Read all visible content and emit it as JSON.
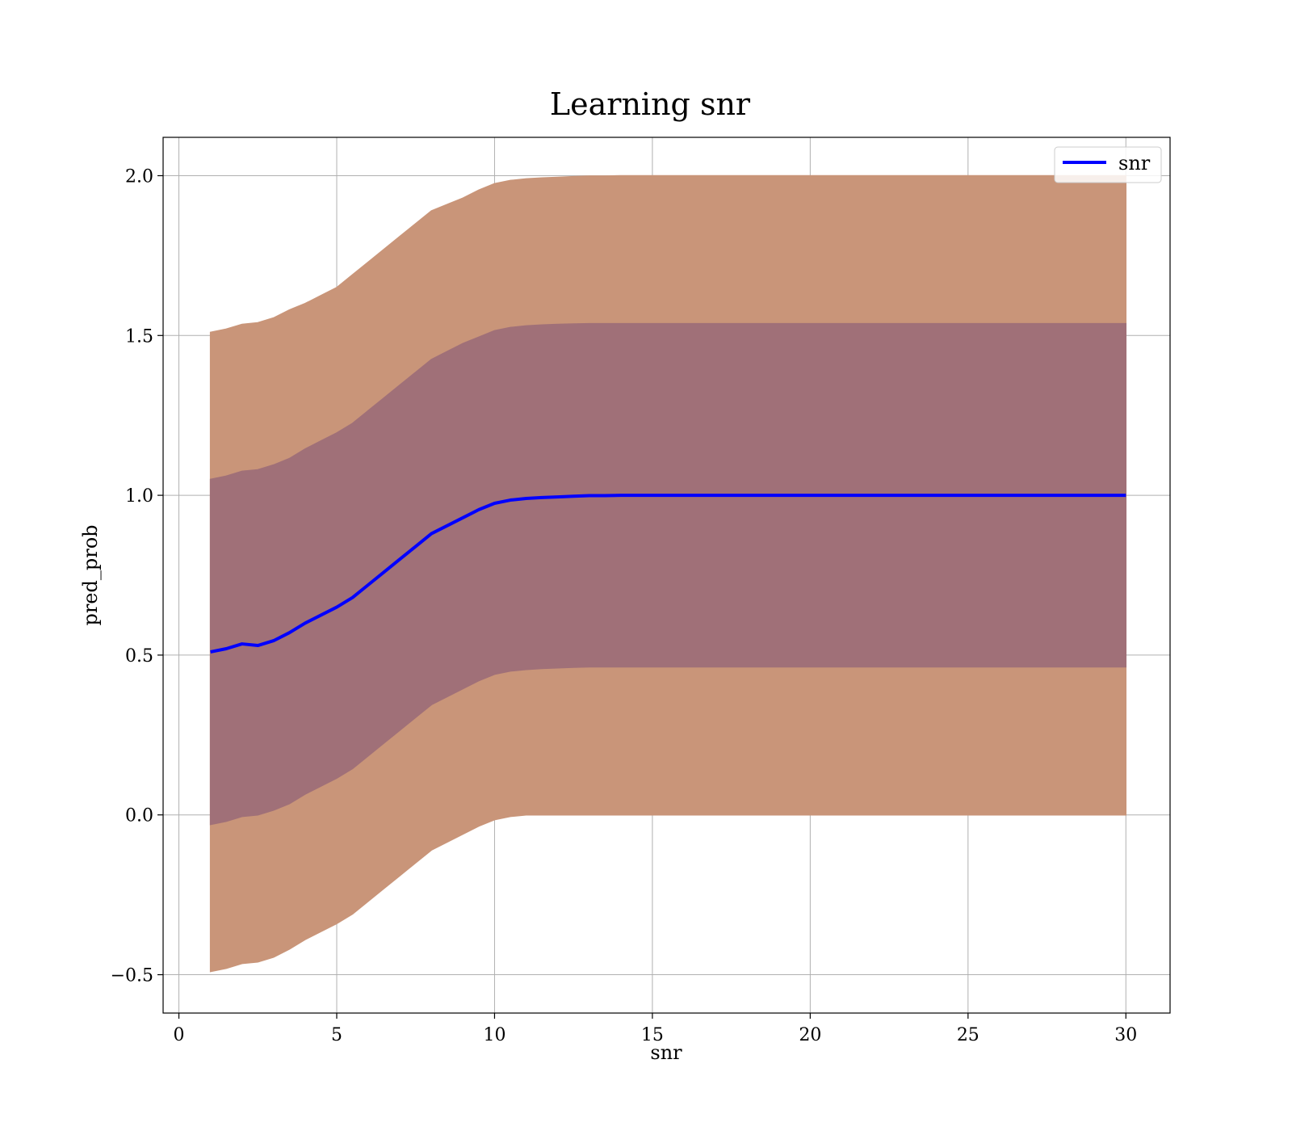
{
  "chart_data": {
    "type": "line",
    "title": "Learning snr",
    "xlabel": "snr",
    "ylabel": "pred_prob",
    "xlim": [
      -0.5,
      31.4
    ],
    "ylim": [
      -0.62,
      2.12
    ],
    "xticks": [
      0,
      5,
      10,
      15,
      20,
      25,
      30
    ],
    "xtick_labels": [
      "0",
      "5",
      "10",
      "15",
      "20",
      "25",
      "30"
    ],
    "yticks": [
      -0.5,
      0.0,
      0.5,
      1.0,
      1.5,
      2.0
    ],
    "ytick_labels": [
      "−0.5",
      "0.0",
      "0.5",
      "1.0",
      "1.5",
      "2.0"
    ],
    "grid": true,
    "legend": {
      "position": "top-right",
      "entries": [
        "snr"
      ]
    },
    "x": [
      1,
      1.5,
      2,
      2.5,
      3,
      3.5,
      4,
      4.5,
      5,
      5.5,
      6,
      6.5,
      7,
      7.5,
      8,
      8.5,
      9,
      9.5,
      10,
      10.5,
      11,
      11.5,
      12,
      12.5,
      13,
      13.5,
      14,
      15,
      16,
      18,
      20,
      22,
      25,
      28,
      30
    ],
    "series": [
      {
        "name": "snr",
        "color": "#0000ff",
        "values": [
          0.51,
          0.52,
          0.535,
          0.53,
          0.545,
          0.57,
          0.6,
          0.625,
          0.65,
          0.68,
          0.72,
          0.76,
          0.8,
          0.84,
          0.88,
          0.905,
          0.93,
          0.955,
          0.975,
          0.985,
          0.99,
          0.993,
          0.995,
          0.997,
          0.999,
          0.999,
          1.0,
          1.0,
          1.0,
          1.0,
          1.0,
          1.0,
          1.0,
          1.0,
          1.0
        ]
      }
    ],
    "bands": [
      {
        "color": "#c99579",
        "lower": [
          -0.49,
          -0.48,
          -0.465,
          -0.46,
          -0.445,
          -0.42,
          -0.39,
          -0.365,
          -0.34,
          -0.31,
          -0.27,
          -0.23,
          -0.19,
          -0.15,
          -0.11,
          -0.085,
          -0.06,
          -0.035,
          -0.015,
          -0.005,
          0.0,
          0.0,
          0.0,
          0.0,
          0.0,
          0.0,
          0.0,
          0.0,
          0.0,
          0.0,
          0.0,
          0.0,
          0.0,
          0.0,
          0.0
        ],
        "upper": [
          1.51,
          1.52,
          1.535,
          1.54,
          1.555,
          1.58,
          1.6,
          1.625,
          1.65,
          1.69,
          1.73,
          1.77,
          1.81,
          1.85,
          1.89,
          1.91,
          1.93,
          1.955,
          1.975,
          1.985,
          1.99,
          1.993,
          1.995,
          1.997,
          1.999,
          1.999,
          2.0,
          2.0,
          2.0,
          2.0,
          2.0,
          2.0,
          2.0,
          2.0,
          2.0
        ]
      },
      {
        "color": "#a07078",
        "lower": [
          -0.03,
          -0.02,
          -0.005,
          -0.0,
          0.015,
          0.035,
          0.065,
          0.09,
          0.115,
          0.145,
          0.185,
          0.225,
          0.265,
          0.305,
          0.345,
          0.37,
          0.395,
          0.42,
          0.44,
          0.45,
          0.455,
          0.458,
          0.46,
          0.462,
          0.463,
          0.463,
          0.463,
          0.463,
          0.463,
          0.463,
          0.463,
          0.463,
          0.463,
          0.463,
          0.463
        ],
        "upper": [
          1.05,
          1.06,
          1.075,
          1.08,
          1.095,
          1.115,
          1.145,
          1.17,
          1.195,
          1.225,
          1.265,
          1.305,
          1.345,
          1.385,
          1.425,
          1.45,
          1.475,
          1.495,
          1.515,
          1.525,
          1.53,
          1.533,
          1.535,
          1.536,
          1.537,
          1.537,
          1.537,
          1.537,
          1.537,
          1.537,
          1.537,
          1.537,
          1.537,
          1.537,
          1.537
        ]
      }
    ]
  }
}
